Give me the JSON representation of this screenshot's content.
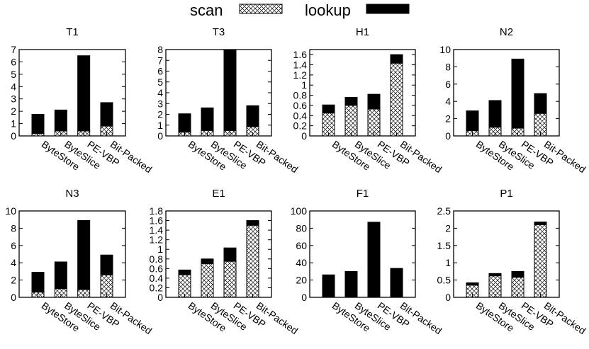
{
  "legend": {
    "scan_label": "scan",
    "lookup_label": "lookup"
  },
  "categories": [
    "ByteStore",
    "ByteSlice",
    "PE-VBP",
    "Bit-Packed"
  ],
  "chart_data": [
    {
      "type": "bar",
      "stacked": true,
      "title": "T1",
      "ylim": [
        0,
        7
      ],
      "yticks": [
        "0",
        "1",
        "2",
        "3",
        "4",
        "5",
        "6",
        "7"
      ],
      "categories": [
        "ByteStore",
        "ByteSlice",
        "PE-VBP",
        "Bit-Packed"
      ],
      "series": [
        {
          "name": "scan",
          "values": [
            0.2,
            0.4,
            0.4,
            0.8
          ]
        },
        {
          "name": "lookup",
          "values": [
            1.55,
            1.7,
            6.1,
            1.9
          ]
        }
      ]
    },
    {
      "type": "bar",
      "stacked": true,
      "title": "T3",
      "ylim": [
        0,
        8
      ],
      "yticks": [
        "0",
        "1",
        "2",
        "3",
        "4",
        "5",
        "6",
        "7",
        "8"
      ],
      "categories": [
        "ByteStore",
        "ByteSlice",
        "PE-VBP",
        "Bit-Packed"
      ],
      "series": [
        {
          "name": "scan",
          "values": [
            0.35,
            0.5,
            0.5,
            0.85
          ]
        },
        {
          "name": "lookup",
          "values": [
            1.7,
            2.1,
            7.5,
            1.95
          ]
        }
      ]
    },
    {
      "type": "bar",
      "stacked": true,
      "title": "H1",
      "ylim": [
        0,
        1.7
      ],
      "yticks": [
        "0",
        "0.2",
        "0.4",
        "0.6",
        "0.8",
        "1",
        "1.2",
        "1.4",
        "1.6"
      ],
      "ytick_values": [
        0,
        0.2,
        0.4,
        0.6,
        0.8,
        1,
        1.2,
        1.4,
        1.6
      ],
      "categories": [
        "ByteStore",
        "ByteSlice",
        "PE-VBP",
        "Bit-Packed"
      ],
      "series": [
        {
          "name": "scan",
          "values": [
            0.45,
            0.6,
            0.53,
            1.43
          ]
        },
        {
          "name": "lookup",
          "values": [
            0.16,
            0.16,
            0.29,
            0.17
          ]
        }
      ]
    },
    {
      "type": "bar",
      "stacked": true,
      "title": "N2",
      "ylim": [
        0,
        10
      ],
      "yticks": [
        "0",
        "2",
        "4",
        "6",
        "8",
        "10"
      ],
      "ytick_values": [
        0,
        2,
        4,
        6,
        8,
        10
      ],
      "categories": [
        "ByteStore",
        "ByteSlice",
        "PE-VBP",
        "Bit-Packed"
      ],
      "series": [
        {
          "name": "scan",
          "values": [
            0.6,
            1.0,
            0.9,
            2.6
          ]
        },
        {
          "name": "lookup",
          "values": [
            2.3,
            3.1,
            8.0,
            2.3
          ]
        }
      ]
    },
    {
      "type": "bar",
      "stacked": true,
      "title": "N3",
      "ylim": [
        0,
        10
      ],
      "yticks": [
        "0",
        "2",
        "4",
        "6",
        "8",
        "10"
      ],
      "ytick_values": [
        0,
        2,
        4,
        6,
        8,
        10
      ],
      "categories": [
        "ByteStore",
        "ByteSlice",
        "PE-VBP",
        "Bit-Packed"
      ],
      "series": [
        {
          "name": "scan",
          "values": [
            0.6,
            1.0,
            0.9,
            2.6
          ]
        },
        {
          "name": "lookup",
          "values": [
            2.3,
            3.1,
            8.0,
            2.3
          ]
        }
      ]
    },
    {
      "type": "bar",
      "stacked": true,
      "title": "E1",
      "ylim": [
        0,
        1.8
      ],
      "yticks": [
        "0",
        "0.2",
        "0.4",
        "0.6",
        "0.8",
        "1",
        "1.2",
        "1.4",
        "1.6",
        "1.8"
      ],
      "ytick_values": [
        0,
        0.2,
        0.4,
        0.6,
        0.8,
        1,
        1.2,
        1.4,
        1.6,
        1.8
      ],
      "categories": [
        "ByteStore",
        "ByteSlice",
        "PE-VBP",
        "Bit-Packed"
      ],
      "series": [
        {
          "name": "scan",
          "values": [
            0.47,
            0.7,
            0.75,
            1.5
          ]
        },
        {
          "name": "lookup",
          "values": [
            0.1,
            0.1,
            0.28,
            0.1
          ]
        }
      ]
    },
    {
      "type": "bar",
      "stacked": true,
      "title": "F1",
      "ylim": [
        0,
        100
      ],
      "yticks": [
        "0",
        "20",
        "40",
        "60",
        "80",
        "100"
      ],
      "ytick_values": [
        0,
        20,
        40,
        60,
        80,
        100
      ],
      "categories": [
        "ByteStore",
        "ByteSlice",
        "PE-VBP",
        "Bit-Packed"
      ],
      "series": [
        {
          "name": "scan",
          "values": [
            0.3,
            0.3,
            0.3,
            0.5
          ]
        },
        {
          "name": "lookup",
          "values": [
            25.7,
            29.7,
            86.7,
            33.0
          ]
        }
      ]
    },
    {
      "type": "bar",
      "stacked": true,
      "title": "P1",
      "ylim": [
        0,
        2.5
      ],
      "yticks": [
        "0",
        "0.5",
        "1",
        "1.5",
        "2",
        "2.5"
      ],
      "ytick_values": [
        0,
        0.5,
        1,
        1.5,
        2,
        2.5
      ],
      "categories": [
        "ByteStore",
        "ByteSlice",
        "PE-VBP",
        "Bit-Packed"
      ],
      "series": [
        {
          "name": "scan",
          "values": [
            0.35,
            0.62,
            0.58,
            2.1
          ]
        },
        {
          "name": "lookup",
          "values": [
            0.07,
            0.07,
            0.17,
            0.08
          ]
        }
      ]
    }
  ]
}
